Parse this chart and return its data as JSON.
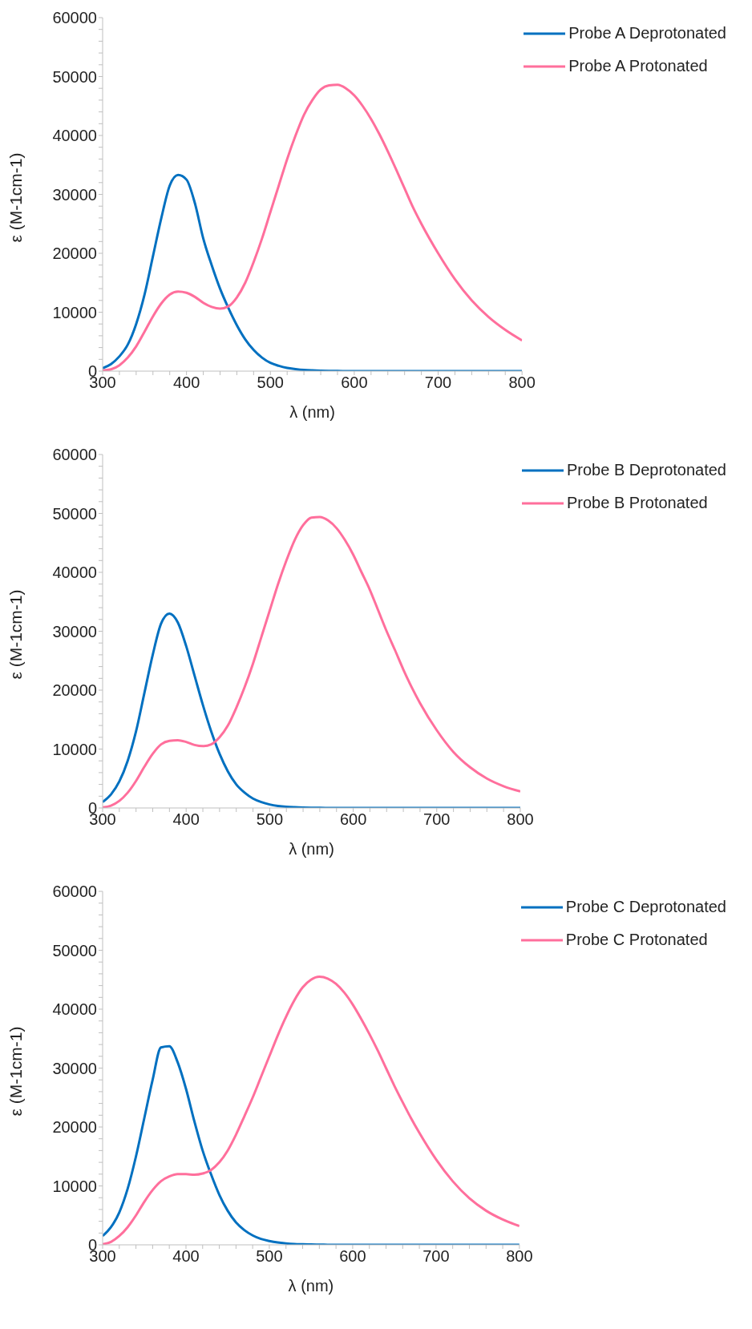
{
  "chart_data": [
    {
      "type": "line",
      "xlabel": "λ (nm)",
      "ylabel": "ε (M-1cm-1)",
      "legend": "top right",
      "grid": false,
      "marker": "none",
      "line_style": "solid",
      "xlim": [
        300,
        800
      ],
      "ylim": [
        0,
        60000
      ],
      "xticks": [
        300,
        {
          "value": 320,
          "label": null
        },
        {
          "value": 340,
          "label": null
        },
        {
          "value": 360,
          "label": null
        },
        {
          "value": 380,
          "label": null
        },
        400,
        {
          "value": 420,
          "label": null
        },
        {
          "value": 440,
          "label": null
        },
        {
          "value": 460,
          "label": null
        },
        {
          "value": 480,
          "label": null
        },
        500,
        {
          "value": 520,
          "label": null
        },
        {
          "value": 540,
          "label": null
        },
        {
          "value": 560,
          "label": null
        },
        {
          "value": 580,
          "label": null
        },
        600,
        {
          "value": 620,
          "label": null
        },
        {
          "value": 640,
          "label": null
        },
        {
          "value": 660,
          "label": null
        },
        {
          "value": 680,
          "label": null
        },
        700,
        {
          "value": 720,
          "label": null
        },
        {
          "value": 740,
          "label": null
        },
        {
          "value": 760,
          "label": null
        },
        {
          "value": 780,
          "label": null
        },
        800
      ],
      "yticks": [
        0,
        {
          "value": 2000,
          "label": null
        },
        {
          "value": 4000,
          "label": null
        },
        {
          "value": 6000,
          "label": null
        },
        {
          "value": 8000,
          "label": null
        },
        10000,
        {
          "value": 12000,
          "label": null
        },
        {
          "value": 14000,
          "label": null
        },
        {
          "value": 16000,
          "label": null
        },
        {
          "value": 18000,
          "label": null
        },
        20000,
        {
          "value": 22000,
          "label": null
        },
        {
          "value": 24000,
          "label": null
        },
        {
          "value": 26000,
          "label": null
        },
        {
          "value": 28000,
          "label": null
        },
        30000,
        {
          "value": 32000,
          "label": null
        },
        {
          "value": 34000,
          "label": null
        },
        {
          "value": 36000,
          "label": null
        },
        {
          "value": 38000,
          "label": null
        },
        40000,
        {
          "value": 42000,
          "label": null
        },
        {
          "value": 44000,
          "label": null
        },
        {
          "value": 46000,
          "label": null
        },
        {
          "value": 48000,
          "label": null
        },
        50000,
        {
          "value": 52000,
          "label": null
        },
        {
          "value": 54000,
          "label": null
        },
        {
          "value": 56000,
          "label": null
        },
        {
          "value": 58000,
          "label": null
        },
        60000
      ],
      "x": [
        300,
        310,
        320,
        330,
        340,
        350,
        360,
        370,
        380,
        390,
        400,
        410,
        420,
        430,
        440,
        450,
        460,
        470,
        480,
        490,
        500,
        510,
        520,
        530,
        540,
        550,
        560,
        570,
        580,
        590,
        600,
        610,
        620,
        630,
        640,
        650,
        660,
        670,
        680,
        700,
        720,
        740,
        760,
        780,
        800
      ],
      "series": [
        {
          "name": "Probe A Deprotonated",
          "color": "#0070c0",
          "values": [
            500,
            1200,
            2500,
            4500,
            8000,
            13000,
            19500,
            26000,
            31500,
            33300,
            32500,
            28500,
            22500,
            18000,
            14000,
            10700,
            7800,
            5400,
            3600,
            2300,
            1400,
            900,
            550,
            350,
            200,
            120,
            70,
            40,
            20,
            10,
            0,
            0,
            0,
            0,
            0,
            0,
            0,
            0,
            0,
            0,
            0,
            0,
            0,
            0,
            0
          ]
        },
        {
          "name": "Probe A Protonated",
          "color": "#ff6f9c",
          "values": [
            100,
            300,
            1000,
            2300,
            4200,
            6700,
            9300,
            11500,
            13000,
            13500,
            13300,
            12600,
            11600,
            10900,
            10600,
            11000,
            12500,
            15000,
            18500,
            22500,
            27000,
            31500,
            36000,
            40000,
            43500,
            46000,
            47800,
            48500,
            48600,
            48000,
            46800,
            45000,
            42800,
            40200,
            37300,
            34200,
            31000,
            27800,
            25000,
            20000,
            15600,
            12000,
            9200,
            7000,
            5200
          ]
        }
      ]
    },
    {
      "type": "line",
      "xlabel": "λ (nm)",
      "ylabel": "ε (M-1cm-1)",
      "legend": "top right",
      "grid": false,
      "marker": "none",
      "line_style": "solid",
      "xlim": [
        300,
        800
      ],
      "ylim": [
        0,
        60000
      ],
      "xticks": [
        300,
        {
          "value": 320,
          "label": null
        },
        {
          "value": 340,
          "label": null
        },
        {
          "value": 360,
          "label": null
        },
        {
          "value": 380,
          "label": null
        },
        400,
        {
          "value": 420,
          "label": null
        },
        {
          "value": 440,
          "label": null
        },
        {
          "value": 460,
          "label": null
        },
        {
          "value": 480,
          "label": null
        },
        500,
        {
          "value": 520,
          "label": null
        },
        {
          "value": 540,
          "label": null
        },
        {
          "value": 560,
          "label": null
        },
        {
          "value": 580,
          "label": null
        },
        600,
        {
          "value": 620,
          "label": null
        },
        {
          "value": 640,
          "label": null
        },
        {
          "value": 660,
          "label": null
        },
        {
          "value": 680,
          "label": null
        },
        700,
        {
          "value": 720,
          "label": null
        },
        {
          "value": 740,
          "label": null
        },
        {
          "value": 760,
          "label": null
        },
        {
          "value": 780,
          "label": null
        },
        800
      ],
      "yticks": [
        0,
        {
          "value": 2000,
          "label": null
        },
        {
          "value": 4000,
          "label": null
        },
        {
          "value": 6000,
          "label": null
        },
        {
          "value": 8000,
          "label": null
        },
        10000,
        {
          "value": 12000,
          "label": null
        },
        {
          "value": 14000,
          "label": null
        },
        {
          "value": 16000,
          "label": null
        },
        {
          "value": 18000,
          "label": null
        },
        20000,
        {
          "value": 22000,
          "label": null
        },
        {
          "value": 24000,
          "label": null
        },
        {
          "value": 26000,
          "label": null
        },
        {
          "value": 28000,
          "label": null
        },
        30000,
        {
          "value": 32000,
          "label": null
        },
        {
          "value": 34000,
          "label": null
        },
        {
          "value": 36000,
          "label": null
        },
        {
          "value": 38000,
          "label": null
        },
        40000,
        {
          "value": 42000,
          "label": null
        },
        {
          "value": 44000,
          "label": null
        },
        {
          "value": 46000,
          "label": null
        },
        {
          "value": 48000,
          "label": null
        },
        50000,
        {
          "value": 52000,
          "label": null
        },
        {
          "value": 54000,
          "label": null
        },
        {
          "value": 56000,
          "label": null
        },
        {
          "value": 58000,
          "label": null
        },
        60000
      ],
      "x": [
        300,
        310,
        320,
        330,
        340,
        350,
        360,
        370,
        380,
        390,
        400,
        410,
        420,
        430,
        440,
        450,
        460,
        470,
        480,
        490,
        500,
        510,
        520,
        530,
        540,
        550,
        560,
        570,
        580,
        590,
        600,
        610,
        620,
        630,
        640,
        650,
        660,
        670,
        680,
        700,
        720,
        740,
        760,
        780,
        800
      ],
      "series": [
        {
          "name": "Probe B Deprotonated",
          "color": "#0070c0",
          "values": [
            1000,
            2300,
            4500,
            8000,
            13000,
            19500,
            26000,
            31300,
            33000,
            31500,
            27500,
            22500,
            17500,
            13000,
            9200,
            6200,
            4000,
            2600,
            1600,
            1000,
            600,
            350,
            200,
            120,
            70,
            40,
            20,
            10,
            0,
            0,
            0,
            0,
            0,
            0,
            0,
            0,
            0,
            0,
            0,
            0,
            0,
            0,
            0,
            0,
            0
          ]
        },
        {
          "name": "Probe B Protonated",
          "color": "#ff6f9c",
          "values": [
            100,
            400,
            1200,
            2600,
            4600,
            7000,
            9200,
            10800,
            11400,
            11500,
            11200,
            10700,
            10500,
            10800,
            12000,
            14000,
            17000,
            20500,
            24500,
            29000,
            33500,
            38000,
            42000,
            45500,
            48000,
            49300,
            49400,
            48800,
            47500,
            45500,
            43000,
            40000,
            37000,
            33500,
            30000,
            26800,
            23500,
            20500,
            17800,
            13200,
            9500,
            6900,
            5000,
            3700,
            2800
          ]
        }
      ]
    },
    {
      "type": "line",
      "xlabel": "λ (nm)",
      "ylabel": "ε (M-1cm-1)",
      "legend": "top right",
      "grid": false,
      "marker": "none",
      "line_style": "solid",
      "xlim": [
        300,
        800
      ],
      "ylim": [
        0,
        60000
      ],
      "xticks": [
        300,
        {
          "value": 320,
          "label": null
        },
        {
          "value": 340,
          "label": null
        },
        {
          "value": 360,
          "label": null
        },
        {
          "value": 380,
          "label": null
        },
        400,
        {
          "value": 420,
          "label": null
        },
        {
          "value": 440,
          "label": null
        },
        {
          "value": 460,
          "label": null
        },
        {
          "value": 480,
          "label": null
        },
        500,
        {
          "value": 520,
          "label": null
        },
        {
          "value": 540,
          "label": null
        },
        {
          "value": 560,
          "label": null
        },
        {
          "value": 580,
          "label": null
        },
        600,
        {
          "value": 620,
          "label": null
        },
        {
          "value": 640,
          "label": null
        },
        {
          "value": 660,
          "label": null
        },
        {
          "value": 680,
          "label": null
        },
        700,
        {
          "value": 720,
          "label": null
        },
        {
          "value": 740,
          "label": null
        },
        {
          "value": 760,
          "label": null
        },
        {
          "value": 780,
          "label": null
        },
        800
      ],
      "yticks": [
        0,
        {
          "value": 2000,
          "label": null
        },
        {
          "value": 4000,
          "label": null
        },
        {
          "value": 6000,
          "label": null
        },
        {
          "value": 8000,
          "label": null
        },
        10000,
        {
          "value": 12000,
          "label": null
        },
        {
          "value": 14000,
          "label": null
        },
        {
          "value": 16000,
          "label": null
        },
        {
          "value": 18000,
          "label": null
        },
        20000,
        {
          "value": 22000,
          "label": null
        },
        {
          "value": 24000,
          "label": null
        },
        {
          "value": 26000,
          "label": null
        },
        {
          "value": 28000,
          "label": null
        },
        30000,
        {
          "value": 32000,
          "label": null
        },
        {
          "value": 34000,
          "label": null
        },
        {
          "value": 36000,
          "label": null
        },
        {
          "value": 38000,
          "label": null
        },
        40000,
        {
          "value": 42000,
          "label": null
        },
        {
          "value": 44000,
          "label": null
        },
        {
          "value": 46000,
          "label": null
        },
        {
          "value": 48000,
          "label": null
        },
        50000,
        {
          "value": 52000,
          "label": null
        },
        {
          "value": 54000,
          "label": null
        },
        {
          "value": 56000,
          "label": null
        },
        {
          "value": 58000,
          "label": null
        },
        60000
      ],
      "x": [
        300,
        310,
        320,
        330,
        340,
        350,
        360,
        370,
        380,
        390,
        400,
        410,
        420,
        430,
        440,
        450,
        460,
        470,
        480,
        490,
        500,
        510,
        520,
        530,
        540,
        550,
        560,
        570,
        580,
        590,
        600,
        610,
        620,
        630,
        640,
        650,
        660,
        670,
        680,
        700,
        720,
        740,
        760,
        780,
        800
      ],
      "series": [
        {
          "name": "Probe C Deprotonated",
          "color": "#0070c0",
          "values": [
            1500,
            3000,
            5500,
            9500,
            15000,
            21500,
            28000,
            33500,
            33700,
            31000,
            26500,
            21000,
            16000,
            12000,
            8500,
            5800,
            3800,
            2500,
            1600,
            1000,
            650,
            400,
            250,
            150,
            100,
            60,
            30,
            15,
            0,
            0,
            0,
            0,
            0,
            0,
            0,
            0,
            0,
            0,
            0,
            0,
            0,
            0,
            0,
            0,
            0
          ]
        },
        {
          "name": "Probe C Protonated",
          "color": "#ff6f9c",
          "values": [
            100,
            500,
            1500,
            3000,
            5000,
            7300,
            9300,
            10800,
            11600,
            12000,
            12000,
            11900,
            12100,
            12700,
            14000,
            16000,
            18700,
            21800,
            25000,
            28500,
            32000,
            35500,
            38700,
            41500,
            43700,
            45000,
            45500,
            45200,
            44300,
            42800,
            40800,
            38400,
            35800,
            33000,
            30000,
            27000,
            24200,
            21500,
            19000,
            14500,
            10800,
            7900,
            5800,
            4300,
            3200
          ]
        }
      ]
    }
  ]
}
